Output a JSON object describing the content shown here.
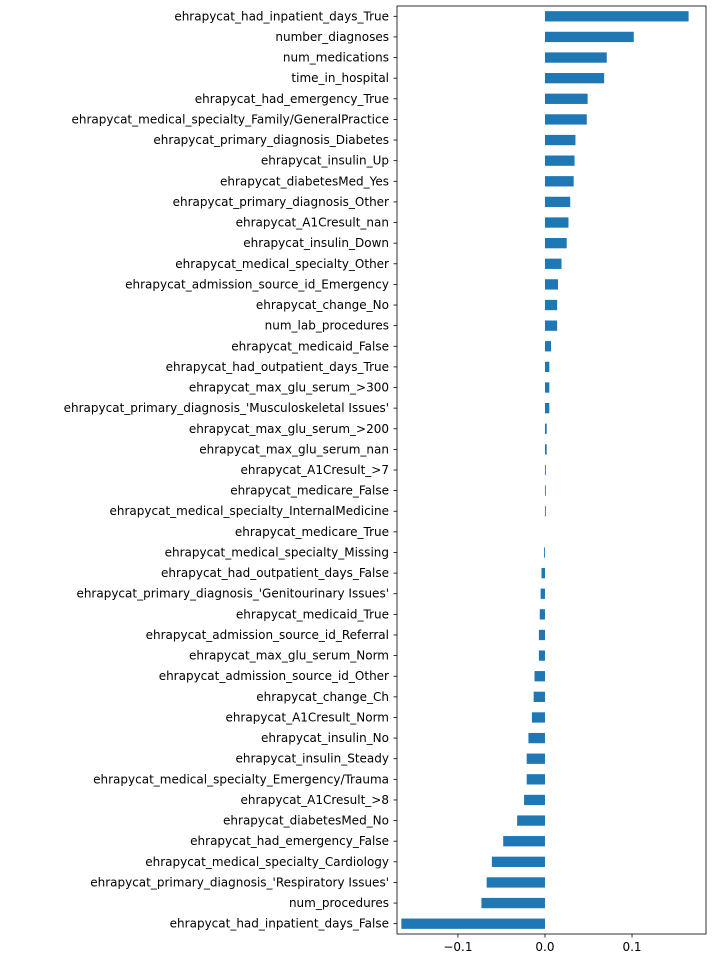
{
  "chart_data": {
    "type": "bar",
    "orientation": "horizontal",
    "title": "",
    "xlabel": "",
    "ylabel": "",
    "xlim": [
      -0.17,
      0.185
    ],
    "xticks": [
      -0.1,
      0.0,
      0.1
    ],
    "xtick_labels": [
      "−0.1",
      "0.0",
      "0.1"
    ],
    "grid": false,
    "bar_color": "#1f77b4",
    "categories": [
      "ehrapycat_had_inpatient_days_True",
      "number_diagnoses",
      "num_medications",
      "time_in_hospital",
      "ehrapycat_had_emergency_True",
      "ehrapycat_medical_specialty_Family/GeneralPractice",
      "ehrapycat_primary_diagnosis_Diabetes",
      "ehrapycat_insulin_Up",
      "ehrapycat_diabetesMed_Yes",
      "ehrapycat_primary_diagnosis_Other",
      "ehrapycat_A1Cresult_nan",
      "ehrapycat_insulin_Down",
      "ehrapycat_medical_specialty_Other",
      "ehrapycat_admission_source_id_Emergency",
      "ehrapycat_change_No",
      "num_lab_procedures",
      "ehrapycat_medicaid_False",
      "ehrapycat_had_outpatient_days_True",
      "ehrapycat_max_glu_serum_>300",
      "ehrapycat_primary_diagnosis_'Musculoskeletal Issues'",
      "ehrapycat_max_glu_serum_>200",
      "ehrapycat_max_glu_serum_nan",
      "ehrapycat_A1Cresult_>7",
      "ehrapycat_medicare_False",
      "ehrapycat_medical_specialty_InternalMedicine",
      "ehrapycat_medicare_True",
      "ehrapycat_medical_specialty_Missing",
      "ehrapycat_had_outpatient_days_False",
      "ehrapycat_primary_diagnosis_'Genitourinary Issues'",
      "ehrapycat_medicaid_True",
      "ehrapycat_admission_source_id_Referral",
      "ehrapycat_max_glu_serum_Norm",
      "ehrapycat_admission_source_id_Other",
      "ehrapycat_change_Ch",
      "ehrapycat_A1Cresult_Norm",
      "ehrapycat_insulin_No",
      "ehrapycat_insulin_Steady",
      "ehrapycat_medical_specialty_Emergency/Trauma",
      "ehrapycat_A1Cresult_>8",
      "ehrapycat_diabetesMed_No",
      "ehrapycat_had_emergency_False",
      "ehrapycat_medical_specialty_Cardiology",
      "ehrapycat_primary_diagnosis_'Respiratory Issues'",
      "num_procedures",
      "ehrapycat_had_inpatient_days_False"
    ],
    "values": [
      0.165,
      0.102,
      0.071,
      0.068,
      0.049,
      0.048,
      0.035,
      0.034,
      0.033,
      0.029,
      0.027,
      0.025,
      0.019,
      0.015,
      0.014,
      0.014,
      0.007,
      0.005,
      0.005,
      0.005,
      0.002,
      0.002,
      0.001,
      0.001,
      0.001,
      0.0,
      -0.001,
      -0.004,
      -0.005,
      -0.006,
      -0.007,
      -0.007,
      -0.012,
      -0.013,
      -0.015,
      -0.019,
      -0.021,
      -0.021,
      -0.024,
      -0.032,
      -0.048,
      -0.061,
      -0.067,
      -0.073,
      -0.165
    ]
  }
}
